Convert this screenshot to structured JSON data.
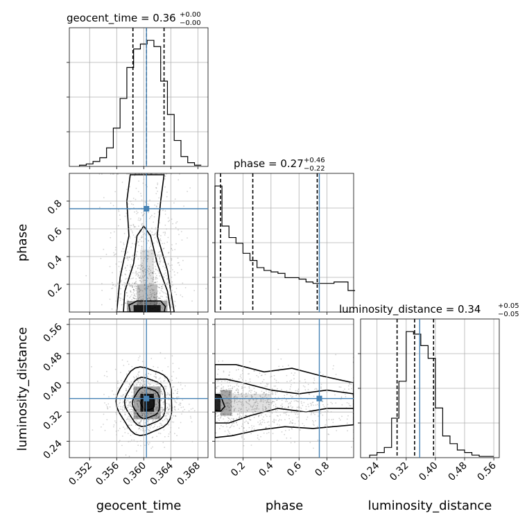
{
  "figure": {
    "background": "#ffffff",
    "truth_color": "#4682b4"
  },
  "chart_data": [
    {
      "type": "histogram",
      "panel": "geocent_time",
      "title": {
        "main": "geocent_time = 0.36",
        "sup": "+0.00",
        "sub": "−0.00"
      },
      "xlim": [
        0.349,
        0.3695
      ],
      "x_ticks": [
        0.352,
        0.356,
        0.36,
        0.364,
        0.368
      ],
      "bin_edges": [
        0.3505,
        0.3515,
        0.3525,
        0.3535,
        0.3545,
        0.3555,
        0.3565,
        0.3575,
        0.3585,
        0.3595,
        0.3605,
        0.3615,
        0.3625,
        0.3635,
        0.3645,
        0.3655,
        0.3665,
        0.3675,
        0.3685
      ],
      "counts": [
        1,
        2,
        4,
        7,
        15,
        31,
        55,
        80,
        95,
        99,
        102,
        97,
        69,
        42,
        21,
        8,
        3,
        1
      ],
      "quantiles": [
        0.3584,
        0.3604,
        0.363
      ],
      "truth": 0.3604
    },
    {
      "type": "histogram",
      "panel": "phase",
      "title": {
        "main": "phase = 0.27",
        "sup": "+0.46",
        "sub": "−0.22"
      },
      "xlim": [
        0.0,
        0.99
      ],
      "x_ticks": [
        "0.2",
        "0.4",
        "0.6",
        "0.8"
      ],
      "x_tick_values": [
        0.2,
        0.4,
        0.6,
        0.8
      ],
      "bin_edges": [
        0.0,
        0.05,
        0.1,
        0.15,
        0.2,
        0.25,
        0.3,
        0.35,
        0.4,
        0.45,
        0.5,
        0.55,
        0.6,
        0.65,
        0.7,
        0.75,
        0.8,
        0.85,
        0.9,
        0.95,
        1.0
      ],
      "counts": [
        88,
        60,
        52,
        48,
        41,
        36,
        31,
        29,
        28,
        27,
        24,
        24,
        23,
        21,
        20,
        20,
        20,
        21,
        21,
        15
      ],
      "quantiles": [
        0.04,
        0.27,
        0.73
      ],
      "truth": 0.745
    },
    {
      "type": "histogram",
      "panel": "luminosity_distance",
      "title": {
        "main": "luminosity_distance = 0.34",
        "sup": "+0.05",
        "sub": "−0.05"
      },
      "xlim": [
        0.195,
        0.575
      ],
      "x_ticks": [
        0.24,
        0.32,
        0.4,
        0.48,
        0.56
      ],
      "bin_edges": [
        0.22,
        0.24,
        0.26,
        0.28,
        0.3,
        0.32,
        0.34,
        0.36,
        0.38,
        0.4,
        0.42,
        0.44,
        0.46,
        0.48,
        0.5,
        0.52,
        0.54,
        0.56
      ],
      "counts": [
        2,
        4,
        8,
        31,
        60,
        99,
        97,
        88,
        78,
        39,
        17,
        11,
        6,
        4,
        2,
        1,
        1
      ],
      "quantiles": [
        0.295,
        0.343,
        0.395
      ],
      "truth": 0.357
    },
    {
      "type": "scatter_contour",
      "panel": "phase vs geocent_time",
      "x_param": "geocent_time",
      "y_param": "phase",
      "ylabel": "phase",
      "xlim": [
        0.349,
        0.3695
      ],
      "ylim": [
        0.0,
        1.0
      ],
      "y_ticks": [
        "0.2",
        "0.4",
        "0.6",
        "0.8"
      ],
      "y_tick_values": [
        0.2,
        0.4,
        0.6,
        0.8
      ],
      "truth": [
        0.3604,
        0.745
      ]
    },
    {
      "type": "scatter_contour",
      "panel": "luminosity_distance vs geocent_time",
      "x_param": "geocent_time",
      "y_param": "luminosity_distance",
      "xlabel": "geocent_time",
      "ylabel": "luminosity_distance",
      "xlim": [
        0.349,
        0.3695
      ],
      "ylim": [
        0.195,
        0.575
      ],
      "x_ticks": [
        "0.352",
        "0.356",
        "0.360",
        "0.364",
        "0.368"
      ],
      "y_ticks": [
        "0.24",
        "0.32",
        "0.40",
        "0.48",
        "0.56"
      ],
      "truth": [
        0.3604,
        0.357
      ]
    },
    {
      "type": "scatter_contour",
      "panel": "luminosity_distance vs phase",
      "x_param": "phase",
      "y_param": "luminosity_distance",
      "xlabel": "phase",
      "xlim": [
        0.0,
        0.99
      ],
      "ylim": [
        0.195,
        0.575
      ],
      "x_ticks": [
        "0.2",
        "0.4",
        "0.6",
        "0.8"
      ],
      "truth": [
        0.745,
        0.357
      ]
    },
    {
      "type": "axis_label",
      "xlabel": "luminosity_distance",
      "x_ticks": [
        "0.24",
        "0.32",
        "0.40",
        "0.48",
        "0.56"
      ]
    }
  ]
}
